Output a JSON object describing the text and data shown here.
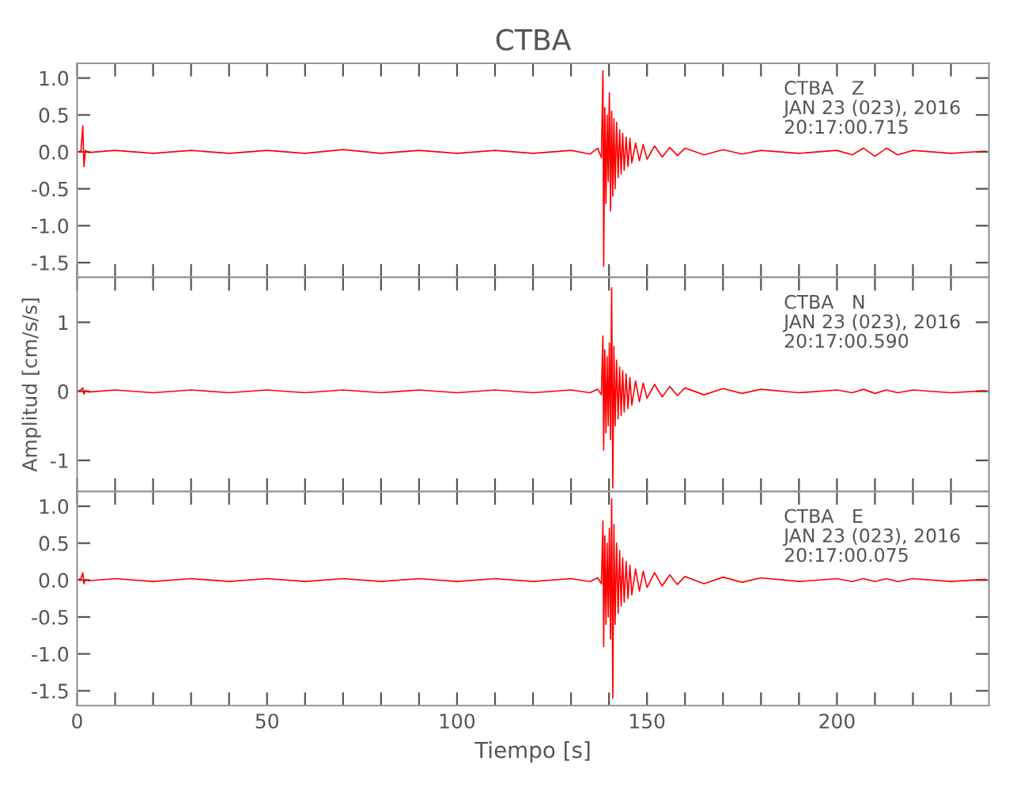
{
  "chart_data": [
    {
      "type": "line",
      "title": "CTBA",
      "annotations": [
        "CTBA   Z\nJAN 23 (023), 2016\n20:17:00.715"
      ],
      "xlim": [
        0,
        240
      ],
      "ylim": [
        -1.7,
        1.2
      ],
      "yticks": [
        {
          "value": -1.5,
          "label": "-1.5"
        },
        {
          "value": -1.0,
          "label": "-1.0"
        },
        {
          "value": -0.5,
          "label": "-0.5"
        },
        {
          "value": 0.0,
          "label": "0.0"
        },
        {
          "value": 0.5,
          "label": "0.5"
        },
        {
          "value": 1.0,
          "label": "1.0"
        }
      ],
      "xticks": [
        {
          "value": 0,
          "label": null
        },
        {
          "value": 10,
          "label": null
        },
        {
          "value": 20,
          "label": null
        },
        {
          "value": 30,
          "label": null
        },
        {
          "value": 40,
          "label": null
        },
        {
          "value": 50,
          "label": null
        },
        {
          "value": 60,
          "label": null
        },
        {
          "value": 70,
          "label": null
        },
        {
          "value": 80,
          "label": null
        },
        {
          "value": 90,
          "label": null
        },
        {
          "value": 100,
          "label": null
        },
        {
          "value": 110,
          "label": null
        },
        {
          "value": 120,
          "label": null
        },
        {
          "value": 130,
          "label": null
        },
        {
          "value": 140,
          "label": null
        },
        {
          "value": 150,
          "label": null
        },
        {
          "value": 160,
          "label": null
        },
        {
          "value": 170,
          "label": null
        },
        {
          "value": 180,
          "label": null
        },
        {
          "value": 190,
          "label": null
        },
        {
          "value": 200,
          "label": null
        },
        {
          "value": 210,
          "label": null
        },
        {
          "value": 220,
          "label": null
        },
        {
          "value": 230,
          "label": null
        }
      ],
      "tick_labels": "y",
      "grid": false,
      "legend": false,
      "marker": "none",
      "line_style": "solid",
      "series": [
        {
          "color": "#ff0000",
          "x": [
            0,
            1,
            1.5,
            1.8,
            2.2,
            3,
            10,
            20,
            30,
            40,
            50,
            60,
            70,
            80,
            90,
            100,
            110,
            120,
            130,
            135,
            137,
            138,
            138.4,
            138.6,
            138.9,
            139.2,
            139.5,
            139.8,
            140.1,
            140.4,
            140.7,
            141,
            141.3,
            141.6,
            142,
            142.4,
            142.8,
            143.2,
            143.6,
            144,
            144.5,
            145,
            145.5,
            146,
            147,
            148,
            149,
            150,
            152,
            154,
            156,
            158,
            160,
            165,
            170,
            175,
            180,
            190,
            200,
            204,
            207,
            210,
            213,
            216,
            220,
            230,
            239
          ],
          "values": [
            0,
            0.01,
            0.35,
            -0.2,
            0.02,
            -0.01,
            0.02,
            -0.02,
            0.02,
            -0.02,
            0.02,
            -0.02,
            0.03,
            -0.02,
            0.02,
            -0.02,
            0.02,
            -0.02,
            0.02,
            -0.03,
            0.05,
            -0.08,
            1.1,
            -1.55,
            0.6,
            -0.7,
            0.5,
            -0.4,
            0.8,
            -0.8,
            0.55,
            -0.6,
            0.45,
            -0.5,
            0.4,
            -0.35,
            0.3,
            -0.3,
            0.25,
            -0.25,
            0.2,
            -0.2,
            0.18,
            -0.15,
            0.12,
            -0.12,
            0.1,
            -0.1,
            0.08,
            -0.07,
            0.06,
            -0.05,
            0.05,
            -0.04,
            0.03,
            -0.03,
            0.02,
            -0.02,
            0.02,
            -0.04,
            0.05,
            -0.06,
            0.05,
            -0.04,
            0.02,
            -0.02,
            0.01
          ]
        }
      ]
    },
    {
      "type": "line",
      "ylabel": "Amplitud [cm/s/s]",
      "annotations": [
        "CTBA   N\nJAN 23 (023), 2016\n20:17:00.590"
      ],
      "xlim": [
        0,
        240
      ],
      "ylim": [
        -1.45,
        1.65
      ],
      "yticks": [
        -1,
        0,
        1
      ],
      "xticks": [
        {
          "value": 0,
          "label": null
        },
        {
          "value": 10,
          "label": null
        },
        {
          "value": 20,
          "label": null
        },
        {
          "value": 30,
          "label": null
        },
        {
          "value": 40,
          "label": null
        },
        {
          "value": 50,
          "label": null
        },
        {
          "value": 60,
          "label": null
        },
        {
          "value": 70,
          "label": null
        },
        {
          "value": 80,
          "label": null
        },
        {
          "value": 90,
          "label": null
        },
        {
          "value": 100,
          "label": null
        },
        {
          "value": 110,
          "label": null
        },
        {
          "value": 120,
          "label": null
        },
        {
          "value": 130,
          "label": null
        },
        {
          "value": 140,
          "label": null
        },
        {
          "value": 150,
          "label": null
        },
        {
          "value": 160,
          "label": null
        },
        {
          "value": 170,
          "label": null
        },
        {
          "value": 180,
          "label": null
        },
        {
          "value": 190,
          "label": null
        },
        {
          "value": 200,
          "label": null
        },
        {
          "value": 210,
          "label": null
        },
        {
          "value": 220,
          "label": null
        },
        {
          "value": 230,
          "label": null
        }
      ],
      "tick_labels": "y",
      "grid": false,
      "legend": false,
      "marker": "none",
      "line_style": "solid",
      "series": [
        {
          "color": "#ff0000",
          "x": [
            0,
            1,
            1.5,
            1.8,
            2.2,
            3,
            10,
            20,
            30,
            40,
            50,
            60,
            70,
            80,
            90,
            100,
            110,
            120,
            130,
            135,
            137,
            138,
            138.4,
            138.6,
            138.9,
            139.2,
            139.5,
            139.8,
            140.1,
            140.4,
            140.7,
            141,
            141.3,
            141.6,
            142,
            142.4,
            142.8,
            143.2,
            143.6,
            144,
            144.5,
            145,
            145.5,
            146,
            147,
            148,
            149,
            150,
            152,
            154,
            156,
            158,
            160,
            165,
            170,
            175,
            180,
            190,
            200,
            204,
            207,
            210,
            213,
            216,
            220,
            230,
            239
          ],
          "values": [
            0,
            0.02,
            0.05,
            -0.04,
            0.01,
            -0.01,
            0.02,
            -0.02,
            0.02,
            -0.02,
            0.02,
            -0.02,
            0.02,
            -0.02,
            0.02,
            -0.02,
            0.02,
            -0.02,
            0.02,
            -0.02,
            0.03,
            -0.05,
            0.8,
            -0.85,
            0.6,
            -0.6,
            0.5,
            -0.5,
            0.7,
            -0.7,
            1.5,
            -1.4,
            0.65,
            -0.5,
            0.45,
            -0.4,
            0.35,
            -0.35,
            0.3,
            -0.3,
            0.25,
            -0.25,
            0.2,
            -0.2,
            0.15,
            -0.15,
            0.12,
            -0.1,
            0.1,
            -0.08,
            0.07,
            -0.06,
            0.05,
            -0.05,
            0.04,
            -0.03,
            0.03,
            -0.02,
            0.02,
            -0.02,
            0.03,
            -0.03,
            0.02,
            -0.02,
            0.02,
            -0.02,
            0.01
          ]
        }
      ]
    },
    {
      "type": "line",
      "xlabel": "Tiempo [s]",
      "annotations": [
        "CTBA   E\nJAN 23 (023), 2016\n20:17:00.075"
      ],
      "xlim": [
        0,
        240
      ],
      "ylim": [
        -1.7,
        1.2
      ],
      "yticks": [
        {
          "value": -1.5,
          "label": "-1.5"
        },
        {
          "value": -1.0,
          "label": "-1.0"
        },
        {
          "value": -0.5,
          "label": "-0.5"
        },
        {
          "value": 0.0,
          "label": "0.0"
        },
        {
          "value": 0.5,
          "label": "0.5"
        },
        {
          "value": 1.0,
          "label": "1.0"
        }
      ],
      "xticks": [
        0,
        {
          "value": 10,
          "label": null
        },
        {
          "value": 20,
          "label": null
        },
        {
          "value": 30,
          "label": null
        },
        {
          "value": 40,
          "label": null
        },
        50,
        {
          "value": 60,
          "label": null
        },
        {
          "value": 70,
          "label": null
        },
        {
          "value": 80,
          "label": null
        },
        {
          "value": 90,
          "label": null
        },
        100,
        {
          "value": 110,
          "label": null
        },
        {
          "value": 120,
          "label": null
        },
        {
          "value": 130,
          "label": null
        },
        {
          "value": 140,
          "label": null
        },
        150,
        {
          "value": 160,
          "label": null
        },
        {
          "value": 170,
          "label": null
        },
        {
          "value": 180,
          "label": null
        },
        {
          "value": 190,
          "label": null
        },
        200,
        {
          "value": 210,
          "label": null
        },
        {
          "value": 220,
          "label": null
        },
        {
          "value": 230,
          "label": null
        }
      ],
      "grid": false,
      "legend": false,
      "marker": "none",
      "line_style": "solid",
      "series": [
        {
          "color": "#ff0000",
          "x": [
            0,
            1,
            1.5,
            1.8,
            2.2,
            3,
            10,
            20,
            30,
            40,
            50,
            60,
            70,
            80,
            90,
            100,
            110,
            120,
            130,
            135,
            137,
            138,
            138.4,
            138.6,
            138.9,
            139.2,
            139.5,
            139.8,
            140.1,
            140.4,
            140.7,
            141,
            141.3,
            141.6,
            142,
            142.4,
            142.8,
            143.2,
            143.6,
            144,
            144.5,
            145,
            145.5,
            146,
            147,
            148,
            149,
            150,
            152,
            154,
            156,
            158,
            160,
            165,
            170,
            175,
            180,
            190,
            200,
            204,
            207,
            210,
            213,
            216,
            220,
            230,
            239
          ],
          "values": [
            0,
            0.02,
            0.1,
            -0.05,
            0.01,
            -0.01,
            0.02,
            -0.02,
            0.02,
            -0.02,
            0.02,
            -0.02,
            0.02,
            -0.02,
            0.02,
            -0.02,
            0.02,
            -0.02,
            0.02,
            -0.02,
            0.03,
            -0.05,
            0.8,
            -0.9,
            0.6,
            -0.6,
            0.5,
            -0.5,
            0.7,
            -0.8,
            1.1,
            -1.6,
            0.75,
            -0.6,
            0.5,
            -0.45,
            0.4,
            -0.35,
            0.3,
            -0.3,
            0.25,
            -0.25,
            0.2,
            -0.2,
            0.15,
            -0.15,
            0.12,
            -0.1,
            0.1,
            -0.08,
            0.07,
            -0.06,
            0.05,
            -0.05,
            0.04,
            -0.03,
            0.03,
            -0.02,
            0.02,
            -0.02,
            0.02,
            -0.02,
            0.02,
            -0.02,
            0.02,
            -0.02,
            0.01
          ]
        }
      ]
    }
  ]
}
